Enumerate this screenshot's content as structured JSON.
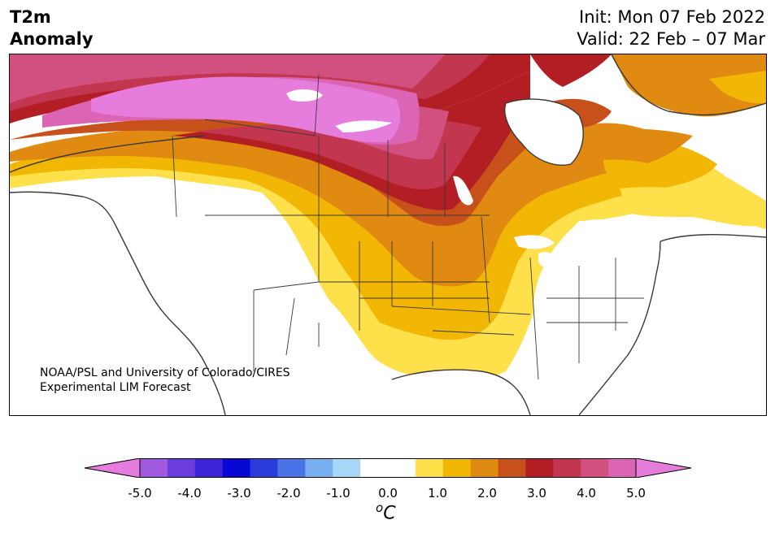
{
  "header": {
    "title_line1": "T2m",
    "title_line2": "Anomaly",
    "init": "Init: Mon 07 Feb 2022",
    "valid": "Valid: 22 Feb – 07 Mar"
  },
  "credit": {
    "line1": "NOAA/PSL and University of Colorado/CIRES",
    "line2": "Experimental LIM Forecast"
  },
  "colorbar": {
    "ticks": [
      "-5.0",
      "-4.0",
      "-3.0",
      "-2.0",
      "-1.0",
      "0.0",
      "1.0",
      "2.0",
      "3.0",
      "4.0",
      "5.0"
    ],
    "unit_sup": "o",
    "unit": "C",
    "colors": [
      "#e67ddc",
      "#a05ae0",
      "#6a3ddc",
      "#3d24d6",
      "#0808d4",
      "#2a3ddc",
      "#4a74e6",
      "#78b0f0",
      "#a8d8f8",
      "#ffffff",
      "#ffffff",
      "#fde04a",
      "#f2b705",
      "#e08a12",
      "#c8501a",
      "#b21e24",
      "#c23650",
      "#d25080",
      "#dc64b4",
      "#e67ddc"
    ]
  },
  "map": {
    "region": "North America",
    "palette": {
      "land_neutral": "#ffffff",
      "anom_0_5": "#fde04a",
      "anom_1_0": "#f2b705",
      "anom_1_5": "#e08a12",
      "anom_2_0": "#c8501a",
      "anom_2_5": "#b21e24",
      "anom_3_0": "#c23650",
      "anom_3_5": "#d25080",
      "anom_4_0": "#dc64b4",
      "anom_5_0": "#e67ddc",
      "border": "#3a3a3a"
    }
  }
}
